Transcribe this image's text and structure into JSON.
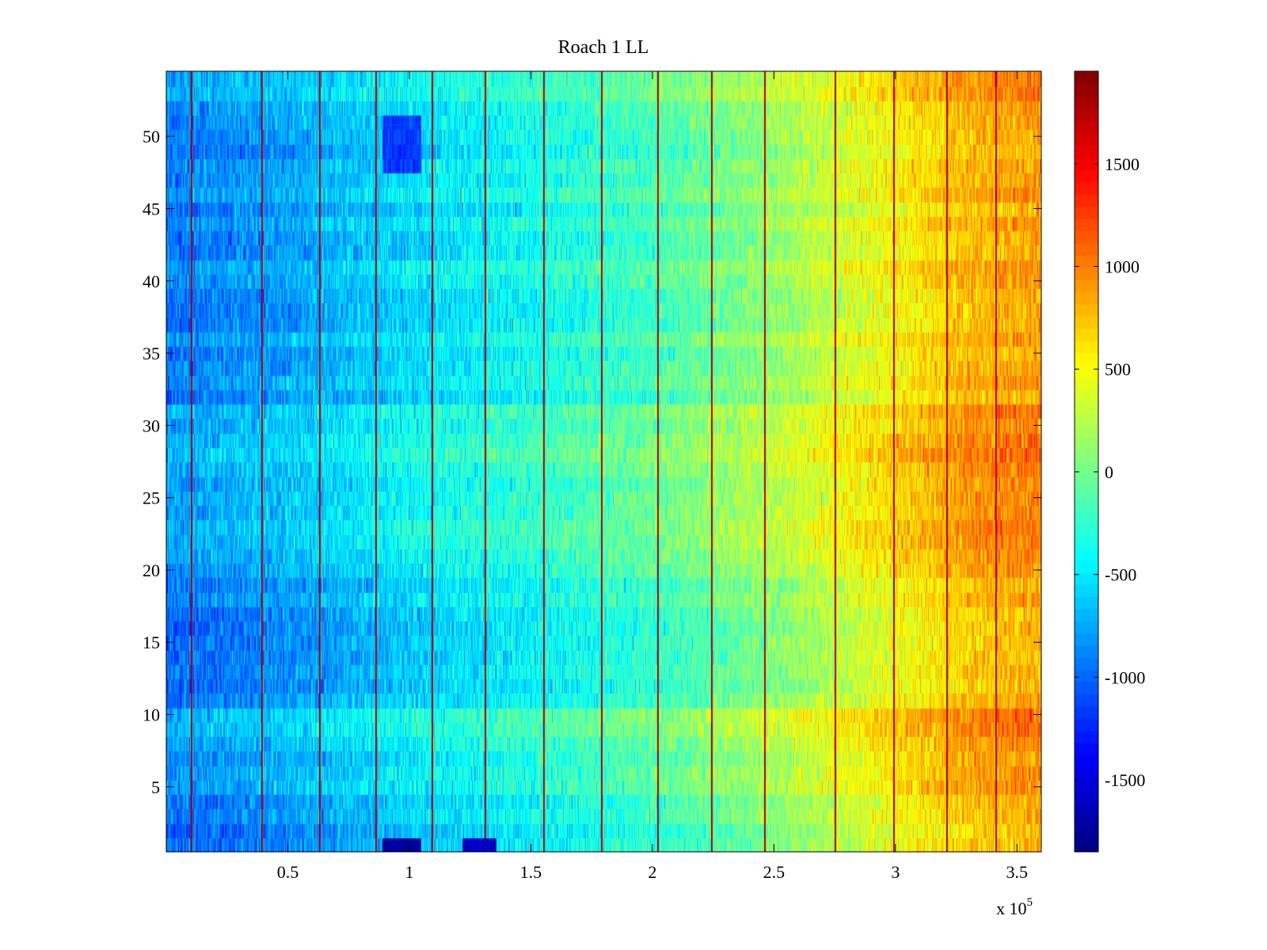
{
  "chart_data": {
    "type": "heatmap",
    "title": "Roach 1 LL",
    "xlabel": "",
    "ylabel": "",
    "x_exponent_label": "x 10",
    "x_exponent_power": "5",
    "xlim": [
      0,
      3.6
    ],
    "ylim": [
      0.5,
      54.5
    ],
    "x_ticks": [
      0.5,
      1,
      1.5,
      2,
      2.5,
      3,
      3.5
    ],
    "x_tick_labels": [
      "0.5",
      "1",
      "1.5",
      "2",
      "2.5",
      "3",
      "3.5"
    ],
    "y_ticks": [
      5,
      10,
      15,
      20,
      25,
      30,
      35,
      40,
      45,
      50
    ],
    "y_tick_labels": [
      "5",
      "10",
      "15",
      "20",
      "25",
      "30",
      "35",
      "40",
      "45",
      "50"
    ],
    "rows": 54,
    "colormap": "jet",
    "colorbar": {
      "clim": [
        -1850,
        1950
      ],
      "ticks": [
        1500,
        1000,
        500,
        0,
        -500,
        -1000,
        -1500
      ],
      "tick_labels": [
        "1500",
        "1000",
        "500",
        "0",
        "-500",
        "-1000",
        "-1500"
      ]
    },
    "trend": {
      "x": [
        0,
        0.5,
        1.0,
        1.5,
        2.0,
        2.5,
        3.0,
        3.3,
        3.6
      ],
      "values": [
        -800,
        -650,
        -420,
        -250,
        -50,
        250,
        650,
        900,
        1000
      ]
    },
    "row_offsets": [
      {
        "rows": [
          1,
          2
        ],
        "offset": -250
      },
      {
        "rows": [
          3,
          4
        ],
        "offset": -150
      },
      {
        "rows": [
          11,
          19
        ],
        "offset": -180
      },
      {
        "rows": [
          26,
          29
        ],
        "offset": 40
      },
      {
        "rows": [
          32,
          52
        ],
        "offset": -120
      }
    ],
    "spike_columns_x": [
      0.1,
      0.39,
      0.63,
      0.86,
      1.09,
      1.31,
      1.55,
      1.79,
      2.02,
      2.24,
      2.46,
      2.75,
      2.99,
      3.21,
      3.41
    ],
    "dark_blocks": [
      {
        "x": [
          0.89,
          1.05
        ],
        "rows": [
          1,
          1
        ],
        "value": -1750
      },
      {
        "x": [
          1.22,
          1.36
        ],
        "rows": [
          1,
          1
        ],
        "value": -1600
      },
      {
        "x": [
          0.89,
          1.05
        ],
        "rows": [
          48,
          51
        ],
        "value": -1150
      }
    ],
    "colors": {
      "axis": "#000000",
      "background": "#ffffff"
    }
  }
}
